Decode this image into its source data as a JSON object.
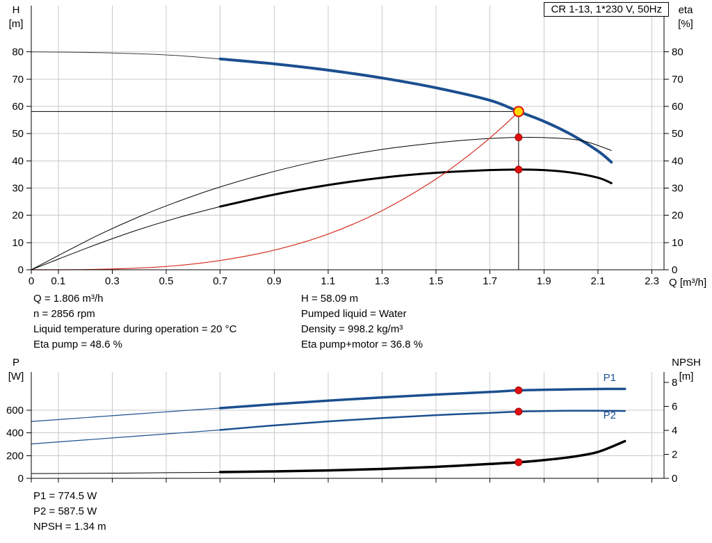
{
  "title_box": "CR 1-13, 1*230 V, 50Hz",
  "colors": {
    "curve_blue": "#1b4f8f",
    "curve_black": "#000000",
    "curve_red": "#d42a1e",
    "marker_red": "#e01010",
    "marker_yellow": "#ffd900",
    "grid": "#c9c9c9",
    "axis": "#000000"
  },
  "info_top": {
    "left": [
      "Q = 1.806 m³/h",
      "n = 2856 rpm",
      "Liquid temperature during operation = 20 °C",
      "Eta pump = 48.6 %"
    ],
    "right": [
      "H = 58.09 m",
      "Pumped liquid = Water",
      "Density = 998.2 kg/m³",
      "Eta pump+motor = 36.8 %"
    ]
  },
  "info_bottom": [
    "P1 = 774.5 W",
    "P2 = 587.5 W",
    "NPSH = 1.34 m"
  ],
  "chart_data": [
    {
      "type": "line",
      "id": "head",
      "x_axis": {
        "label": "Q [m³/h]",
        "min": 0,
        "max": 2.345,
        "ticks": [
          0,
          0.1,
          0.3,
          0.5,
          0.7,
          0.9,
          1.1,
          1.3,
          1.5,
          1.7,
          1.9,
          2.1,
          2.3
        ],
        "tick_labels": [
          "0",
          "0.1",
          "0.3",
          "0.5",
          "0.7",
          "0.9",
          "1.1",
          "1.3",
          "1.5",
          "1.7",
          "1.9",
          "2.1",
          "2.3"
        ]
      },
      "y_left": {
        "name": "H",
        "unit": "[m]",
        "min": 0,
        "max": 97,
        "ticks": [
          0,
          10,
          20,
          30,
          40,
          50,
          60,
          70,
          80
        ]
      },
      "y_right": {
        "name": "eta",
        "unit": "[%]",
        "min": 0,
        "max": 97,
        "ticks": [
          0,
          10,
          20,
          30,
          40,
          50,
          60,
          70,
          80
        ]
      },
      "grid": true,
      "series": [
        {
          "name": "h-curve-extension",
          "axis": "left",
          "color": "#3a3a3a",
          "width": 1,
          "points": [
            [
              0,
              80
            ],
            [
              0.2,
              79.8
            ],
            [
              0.4,
              79.3
            ],
            [
              0.55,
              78.6
            ],
            [
              0.7,
              77.4
            ]
          ]
        },
        {
          "name": "h-curve",
          "axis": "left",
          "color": "#1b4f8f",
          "width": 4,
          "points": [
            [
              0.7,
              77.4
            ],
            [
              0.9,
              75.6
            ],
            [
              1.1,
              73.3
            ],
            [
              1.3,
              70.4
            ],
            [
              1.5,
              66.8
            ],
            [
              1.7,
              62.2
            ],
            [
              1.806,
              58.09
            ],
            [
              1.9,
              54.5
            ],
            [
              2.0,
              49.7
            ],
            [
              2.1,
              43.6
            ],
            [
              2.15,
              39.5
            ]
          ]
        },
        {
          "name": "eta-pump-curve",
          "axis": "right",
          "color": "#000000",
          "width": 1,
          "points": [
            [
              0,
              0
            ],
            [
              0.1,
              5.2
            ],
            [
              0.25,
              12.8
            ],
            [
              0.4,
              19.5
            ],
            [
              0.55,
              25.3
            ],
            [
              0.7,
              30.4
            ],
            [
              0.9,
              36.1
            ],
            [
              1.1,
              40.7
            ],
            [
              1.3,
              44.2
            ],
            [
              1.5,
              46.6
            ],
            [
              1.65,
              47.9
            ],
            [
              1.806,
              48.6
            ],
            [
              1.95,
              48.3
            ],
            [
              2.05,
              47.2
            ],
            [
              2.15,
              43.8
            ]
          ]
        },
        {
          "name": "eta-pump-motor-extension",
          "axis": "right",
          "color": "#000000",
          "width": 1,
          "points": [
            [
              0,
              0
            ],
            [
              0.1,
              3.9
            ],
            [
              0.25,
              9.6
            ],
            [
              0.4,
              14.8
            ],
            [
              0.55,
              19.3
            ],
            [
              0.7,
              23.2
            ]
          ]
        },
        {
          "name": "eta-pump-motor-curve",
          "axis": "right",
          "color": "#000000",
          "width": 3,
          "points": [
            [
              0.7,
              23.2
            ],
            [
              0.9,
              27.6
            ],
            [
              1.1,
              31.1
            ],
            [
              1.3,
              33.8
            ],
            [
              1.5,
              35.6
            ],
            [
              1.7,
              36.6
            ],
            [
              1.806,
              36.8
            ],
            [
              1.9,
              36.6
            ],
            [
              2.0,
              35.7
            ],
            [
              2.1,
              33.8
            ],
            [
              2.15,
              31.8
            ]
          ]
        },
        {
          "name": "system-curve",
          "axis": "left",
          "color": "#d42a1e",
          "width": 1.2,
          "points": [
            [
              0,
              0
            ],
            [
              0.15,
              0.03
            ],
            [
              0.3,
              0.3
            ],
            [
              0.5,
              1.2
            ],
            [
              0.7,
              3.4
            ],
            [
              0.9,
              7.2
            ],
            [
              1.1,
              13.1
            ],
            [
              1.3,
              21.7
            ],
            [
              1.5,
              33.3
            ],
            [
              1.65,
              44.3
            ],
            [
              1.75,
              52.8
            ],
            [
              1.806,
              58.09
            ]
          ]
        }
      ],
      "ref_lines": [
        {
          "type": "v",
          "x": 1.806,
          "y1": 0,
          "y2": 58.09,
          "axis": "left"
        },
        {
          "type": "h",
          "y": 58.09,
          "x1": 0,
          "x2": 1.806,
          "axis": "left"
        }
      ],
      "markers": [
        {
          "name": "duty-point-marker",
          "x": 1.806,
          "y": 58.09,
          "axis": "left",
          "r": 7,
          "fill": "#ffd900",
          "stroke": "#e01010",
          "stroke_width": 2,
          "interactable": true
        },
        {
          "name": "eta-pump-point",
          "x": 1.806,
          "y": 48.6,
          "axis": "right",
          "r": 5,
          "fill": "#e01010",
          "stroke": "#a00000",
          "stroke_width": 1,
          "interactable": false
        },
        {
          "name": "eta-pump-motor-point",
          "x": 1.806,
          "y": 36.8,
          "axis": "right",
          "r": 5,
          "fill": "#e01010",
          "stroke": "#a00000",
          "stroke_width": 1,
          "interactable": false
        }
      ]
    },
    {
      "type": "line",
      "id": "power",
      "x_axis": {
        "label": "",
        "min": 0,
        "max": 2.345,
        "ticks": [
          0,
          0.1,
          0.3,
          0.5,
          0.7,
          0.9,
          1.1,
          1.3,
          1.5,
          1.7,
          1.9,
          2.1,
          2.3
        ]
      },
      "y_left": {
        "name": "P",
        "unit": "[W]",
        "min": 0,
        "max": 936,
        "ticks": [
          0,
          200,
          400,
          600
        ]
      },
      "y_right": {
        "name": "NPSH",
        "unit": "[m]",
        "min": 0,
        "max": 8.87,
        "ticks": [
          0,
          2,
          4,
          6,
          8
        ]
      },
      "grid": true,
      "series": [
        {
          "name": "p1-curve-extension",
          "axis": "left",
          "color": "#1b4f8f",
          "width": 1.2,
          "points": [
            [
              0,
              500
            ],
            [
              0.2,
              534
            ],
            [
              0.4,
              568
            ],
            [
              0.6,
              602
            ],
            [
              0.7,
              618
            ]
          ]
        },
        {
          "name": "p1-curve",
          "axis": "left",
          "color": "#1b4f8f",
          "width": 3.5,
          "points": [
            [
              0.7,
              618
            ],
            [
              0.9,
              652
            ],
            [
              1.1,
              684
            ],
            [
              1.3,
              712
            ],
            [
              1.5,
              737
            ],
            [
              1.7,
              760
            ],
            [
              1.806,
              774.5
            ],
            [
              1.9,
              779
            ],
            [
              2.0,
              783
            ],
            [
              2.1,
              786
            ],
            [
              2.2,
              787
            ]
          ]
        },
        {
          "name": "p2-curve-extension",
          "axis": "left",
          "color": "#1b4f8f",
          "width": 1.2,
          "points": [
            [
              0,
              303
            ],
            [
              0.2,
              338
            ],
            [
              0.4,
              373
            ],
            [
              0.6,
              408
            ],
            [
              0.7,
              426
            ]
          ]
        },
        {
          "name": "p2-curve",
          "axis": "left",
          "color": "#1b4f8f",
          "width": 2.5,
          "points": [
            [
              0.7,
              426
            ],
            [
              0.9,
              466
            ],
            [
              1.1,
              501
            ],
            [
              1.3,
              531
            ],
            [
              1.5,
              556
            ],
            [
              1.7,
              576
            ],
            [
              1.806,
              587.5
            ],
            [
              1.9,
              592
            ],
            [
              2.0,
              595
            ],
            [
              2.1,
              595
            ],
            [
              2.2,
              593
            ]
          ]
        },
        {
          "name": "npsh-curve-extension",
          "axis": "right",
          "color": "#000000",
          "width": 1,
          "points": [
            [
              0,
              0.4
            ],
            [
              0.3,
              0.43
            ],
            [
              0.5,
              0.47
            ],
            [
              0.7,
              0.5
            ]
          ]
        },
        {
          "name": "npsh-curve",
          "axis": "right",
          "color": "#000000",
          "width": 3.5,
          "points": [
            [
              0.7,
              0.52
            ],
            [
              0.9,
              0.58
            ],
            [
              1.1,
              0.66
            ],
            [
              1.3,
              0.78
            ],
            [
              1.5,
              0.96
            ],
            [
              1.7,
              1.2
            ],
            [
              1.806,
              1.34
            ],
            [
              1.9,
              1.52
            ],
            [
              2.0,
              1.78
            ],
            [
              2.1,
              2.2
            ],
            [
              2.2,
              3.1
            ]
          ]
        }
      ],
      "ref_lines": [],
      "markers": [
        {
          "name": "p1-point",
          "x": 1.806,
          "y": 774.5,
          "axis": "left",
          "r": 5,
          "fill": "#e01010",
          "stroke": "#a00000",
          "stroke_width": 1,
          "interactable": false
        },
        {
          "name": "p2-point",
          "x": 1.806,
          "y": 587.5,
          "axis": "left",
          "r": 5,
          "fill": "#e01010",
          "stroke": "#a00000",
          "stroke_width": 1,
          "interactable": false
        },
        {
          "name": "npsh-point",
          "x": 1.806,
          "y": 1.34,
          "axis": "right",
          "r": 5,
          "fill": "#e01010",
          "stroke": "#a00000",
          "stroke_width": 1,
          "interactable": false
        }
      ],
      "annotations": [
        {
          "text": "P1",
          "x": 2.12,
          "y": 855,
          "axis": "left",
          "color": "#1b4f8f"
        },
        {
          "text": "P2",
          "x": 2.12,
          "y": 525,
          "axis": "left",
          "color": "#1b4f8f"
        }
      ]
    }
  ]
}
